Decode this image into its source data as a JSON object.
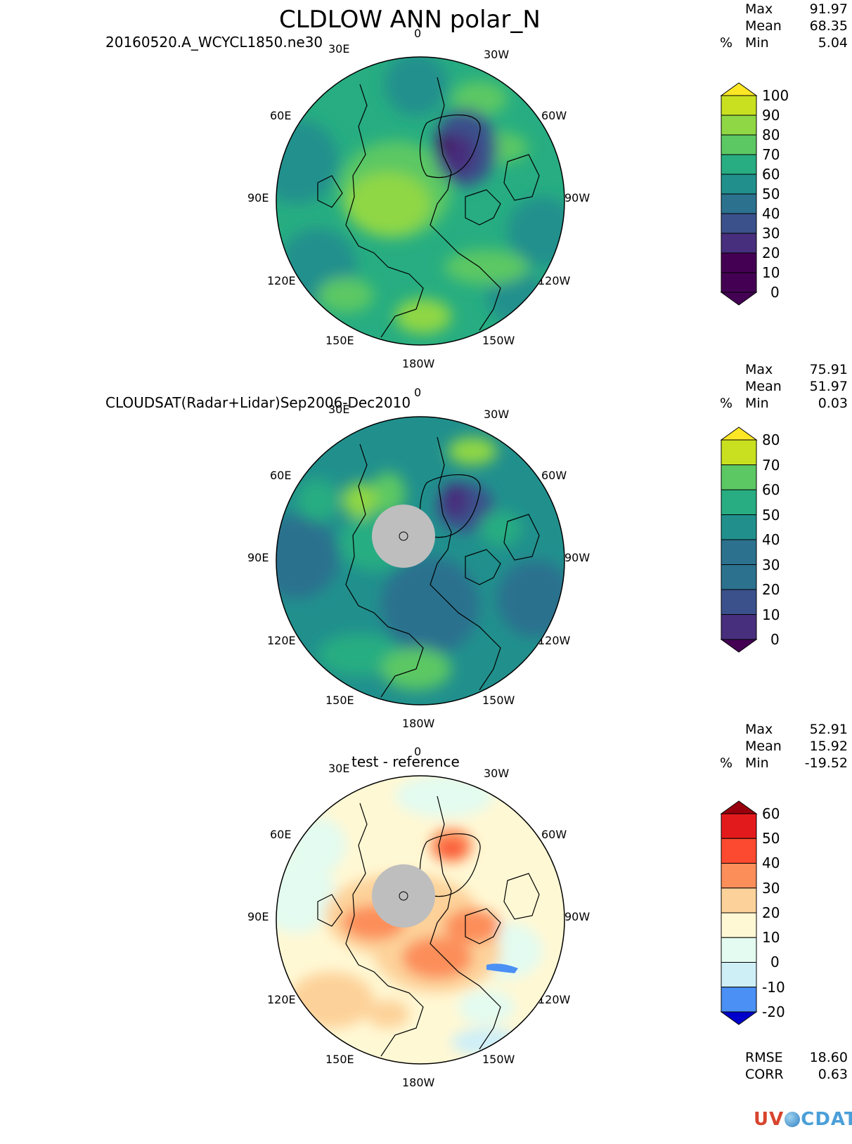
{
  "title": "CLDLOW ANN polar_N",
  "colors": {
    "viridis": [
      "#440154",
      "#472f7d",
      "#3b518b",
      "#2c718e",
      "#21908d",
      "#27ad81",
      "#5cc863",
      "#8fd744",
      "#c8e020",
      "#fde725"
    ],
    "diff": [
      "#0000cc",
      "#4a90f5",
      "#cfeff7",
      "#e3fbf0",
      "#fff8d4",
      "#fdd29a",
      "#fc8e5a",
      "#fb4a2f",
      "#e31a1c",
      "#99000d"
    ],
    "missing": "#bebebe"
  },
  "panels": [
    {
      "subtitle": "20160520.A_WCYCL1850.ne30",
      "units": "%",
      "stats": {
        "max_label": "Max",
        "max": "91.97",
        "mean_label": "Mean",
        "mean": "68.35",
        "min_label": "Min",
        "min": "5.04"
      },
      "lon_labels": {
        "n": "0",
        "ne": "30E",
        "nw": "30W",
        "e60": "60E",
        "w60": "60W",
        "e90": "90E",
        "w90": "90W",
        "e120": "120E",
        "w120": "120W",
        "e150": "150E",
        "w150": "150W",
        "s": "180W"
      },
      "colorbar": {
        "ticks": [
          "100",
          "90",
          "80",
          "70",
          "60",
          "50",
          "40",
          "30",
          "20",
          "10",
          "0"
        ],
        "palette": "viridis"
      }
    },
    {
      "subtitle": "CLOUDSAT(Radar+Lidar)Sep2006-Dec2010",
      "units": "%",
      "stats": {
        "max_label": "Max",
        "max": "75.91",
        "mean_label": "Mean",
        "mean": "51.97",
        "min_label": "Min",
        "min": "0.03"
      },
      "lon_labels": {
        "n": "0",
        "ne": "30E",
        "nw": "30W",
        "e60": "60E",
        "w60": "60W",
        "e90": "90E",
        "w90": "90W",
        "e120": "120E",
        "w120": "120W",
        "e150": "150E",
        "w150": "150W",
        "s": "180W"
      },
      "colorbar": {
        "ticks": [
          "80",
          "70",
          "60",
          "50",
          "40",
          "30",
          "20",
          "10",
          "0"
        ],
        "palette": "viridis"
      }
    },
    {
      "subtitle": "test - reference",
      "units": "%",
      "stats": {
        "max_label": "Max",
        "max": "52.91",
        "mean_label": "Mean",
        "mean": "15.92",
        "min_label": "Min",
        "min": "-19.52"
      },
      "lon_labels": {
        "n": "0",
        "ne": "30E",
        "nw": "30W",
        "e60": "60E",
        "w60": "60W",
        "e90": "90E",
        "w90": "90W",
        "e120": "120E",
        "w120": "120W",
        "e150": "150E",
        "w150": "150W",
        "s": "180W"
      },
      "colorbar": {
        "ticks": [
          "60",
          "50",
          "40",
          "30",
          "20",
          "10",
          "0",
          "-10",
          "-20"
        ],
        "palette": "diff"
      },
      "metrics": {
        "rmse_label": "RMSE",
        "rmse": "18.60",
        "corr_label": "CORR",
        "corr": "0.63"
      }
    }
  ],
  "logo": {
    "left": "UV",
    "right": "CDAT"
  }
}
